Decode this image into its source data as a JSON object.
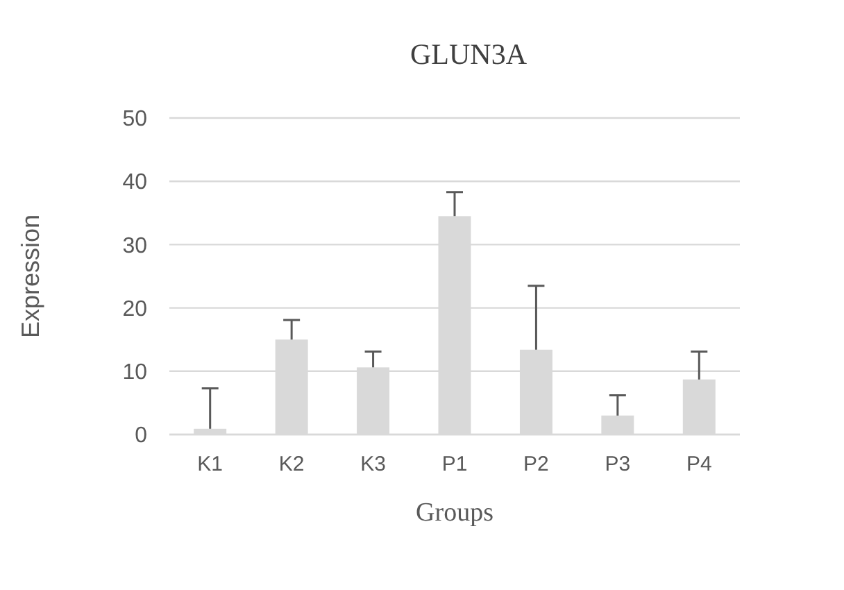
{
  "chart_data": {
    "type": "bar",
    "title": "GLUN3A",
    "xlabel": "Groups",
    "ylabel": "Expression",
    "categories": [
      "K1",
      "K2",
      "K3",
      "P1",
      "P2",
      "P3",
      "P4"
    ],
    "values": [
      0.9,
      15.0,
      10.6,
      34.5,
      13.4,
      3.0,
      8.7
    ],
    "errors": [
      [
        0.9,
        7.3
      ],
      [
        15.0,
        18.1
      ],
      [
        10.6,
        13.1
      ],
      [
        34.5,
        38.3
      ],
      [
        13.4,
        23.5
      ],
      [
        3.0,
        6.2
      ],
      [
        8.7,
        13.1
      ]
    ],
    "color": "#d9d9d9",
    "ylim": [
      0,
      50
    ],
    "yticks": [
      0,
      10,
      20,
      30,
      40,
      50
    ],
    "grid": "y"
  }
}
